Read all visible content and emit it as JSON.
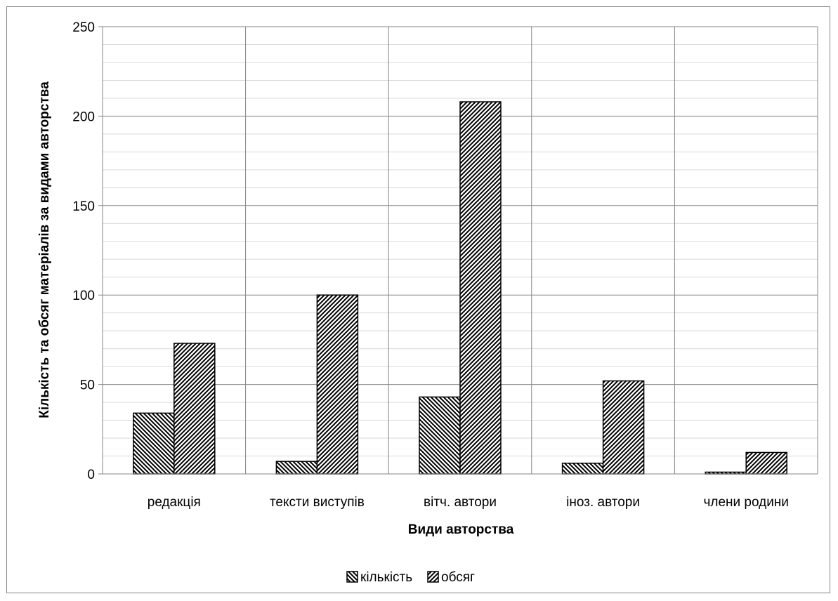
{
  "chart_data": {
    "type": "bar",
    "title": "",
    "xlabel": "Види авторства",
    "ylabel": "Кількість та обсяг матеріалів за видами авторства",
    "categories": [
      "редакція",
      "тексти виступів",
      "вітч. автори",
      "іноз. автори",
      "члени родини"
    ],
    "series": [
      {
        "name": "кількість",
        "values": [
          34,
          7,
          43,
          6,
          1
        ],
        "pattern": "hatch-backslash"
      },
      {
        "name": "обсяг",
        "values": [
          73,
          100,
          208,
          52,
          12
        ],
        "pattern": "hatch-slash"
      }
    ],
    "ylim": [
      0,
      250
    ],
    "yticks": [
      0,
      50,
      100,
      150,
      200,
      250
    ],
    "grid": {
      "major": true,
      "minor": true,
      "vertical": true
    },
    "legend_position": "bottom",
    "colors": {
      "bar_stroke": "#000000",
      "grid": "#868686",
      "axis": "#868686"
    }
  }
}
